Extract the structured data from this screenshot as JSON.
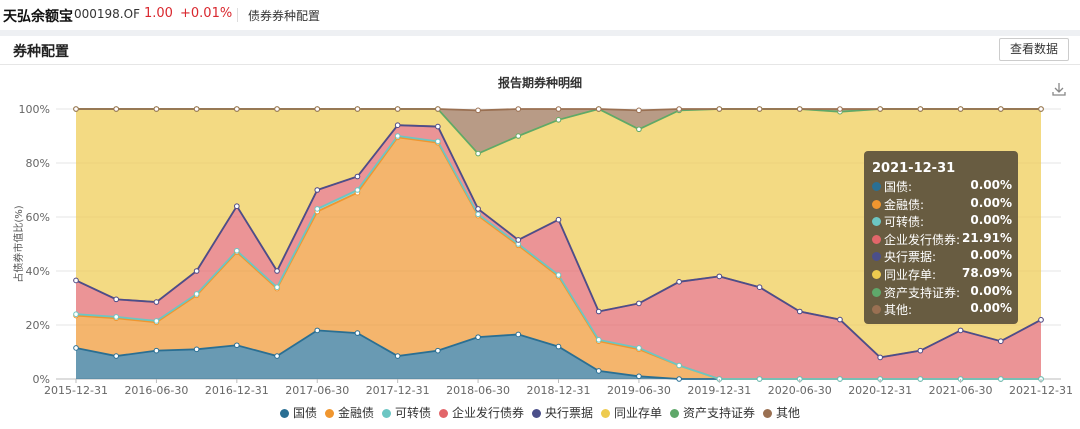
{
  "header": {
    "fund_name": "天弘余额宝",
    "fund_code": "000198.OF",
    "price": "1.00",
    "change": "+0.01%",
    "breadcrumb": "债券券种配置"
  },
  "section": {
    "title": "券种配置",
    "view_data_label": "查看数据"
  },
  "icons": {
    "download": "download-icon"
  },
  "colors": {
    "国债": "#2a6f93",
    "金融债": "#f0962f",
    "可转债": "#6cc6c3",
    "企业发行债券": "#e2666a",
    "央行票据": "#4b4f8a",
    "同业存单": "#eecb4f",
    "资产支持证券": "#5fa86a",
    "其他": "#9a7052"
  },
  "tooltip": {
    "date": "2021-12-31",
    "rows": [
      {
        "name": "国债:",
        "value": "0.00%",
        "color": "#2a6f93"
      },
      {
        "name": "金融债:",
        "value": "0.00%",
        "color": "#f0962f"
      },
      {
        "name": "可转债:",
        "value": "0.00%",
        "color": "#6cc6c3"
      },
      {
        "name": "企业发行债券:",
        "value": "21.91%",
        "color": "#e2666a"
      },
      {
        "name": "央行票据:",
        "value": "0.00%",
        "color": "#4b4f8a"
      },
      {
        "name": "同业存单:",
        "value": "78.09%",
        "color": "#eecb4f"
      },
      {
        "name": "资产支持证券:",
        "value": "0.00%",
        "color": "#5fa86a"
      },
      {
        "name": "其他:",
        "value": "0.00%",
        "color": "#9a7052"
      }
    ]
  },
  "chart_data": {
    "type": "area",
    "stacked": true,
    "title": "报告期券种明细",
    "ylabel": "占债券市值比(%)",
    "ylim": [
      0,
      100
    ],
    "yticks": [
      "0%",
      "20%",
      "40%",
      "60%",
      "80%",
      "100%"
    ],
    "x": [
      "2015-12-31",
      "2016-03-31",
      "2016-06-30",
      "2016-09-30",
      "2016-12-31",
      "2017-03-31",
      "2017-06-30",
      "2017-09-30",
      "2017-12-31",
      "2018-03-31",
      "2018-06-30",
      "2018-09-30",
      "2018-12-31",
      "2019-03-31",
      "2019-06-30",
      "2019-09-30",
      "2019-12-31",
      "2020-03-31",
      "2020-06-30",
      "2020-09-30",
      "2020-12-31",
      "2021-03-31",
      "2021-06-30",
      "2021-09-30",
      "2021-12-31"
    ],
    "xtick_labels": [
      "2015-12-31",
      "2016-06-30",
      "2016-12-31",
      "2017-06-30",
      "2017-12-31",
      "2018-06-30",
      "2018-12-31",
      "2019-06-30",
      "2019-12-31",
      "2020-06-30",
      "2020-12-31",
      "2021-06-30",
      "2021-12-31"
    ],
    "legend_position": "bottom",
    "grid": true,
    "series": [
      {
        "name": "国债",
        "color": "#2a6f93",
        "values": [
          11.5,
          8.5,
          10.5,
          11,
          12.5,
          8.5,
          18,
          17,
          8.5,
          10.5,
          15.5,
          16.5,
          12,
          3,
          1,
          0,
          0,
          0,
          0,
          0,
          0,
          0,
          0,
          0,
          0
        ]
      },
      {
        "name": "金融债",
        "color": "#f0962f",
        "values": [
          12,
          14,
          10.5,
          20,
          34.5,
          25,
          44,
          52,
          81,
          77,
          45,
          33,
          26,
          11,
          10,
          5,
          0,
          0,
          0,
          0,
          0,
          0,
          0,
          0,
          0
        ]
      },
      {
        "name": "可转债",
        "color": "#6cc6c3",
        "values": [
          0.5,
          0.5,
          0.5,
          0.5,
          0.5,
          0.5,
          1,
          1,
          0.5,
          0.5,
          0.5,
          0.5,
          0.5,
          0.5,
          0.5,
          0,
          0,
          0,
          0,
          0,
          0,
          0,
          0,
          0,
          0
        ]
      },
      {
        "name": "企业发行债券",
        "color": "#e2666a",
        "values": [
          12.5,
          6.5,
          7,
          8.5,
          16.5,
          6,
          7,
          5,
          4,
          5.5,
          2,
          1.5,
          20.5,
          10.5,
          16.5,
          31,
          38,
          34,
          25,
          22,
          8,
          10.5,
          18,
          14,
          21.91
        ]
      },
      {
        "name": "央行票据",
        "color": "#4b4f8a",
        "values": [
          0,
          0,
          0,
          0,
          0,
          0,
          0,
          0,
          0,
          0,
          0,
          0,
          0,
          0,
          0,
          0,
          0,
          0,
          0,
          0,
          0,
          0,
          0,
          0,
          0
        ]
      },
      {
        "name": "同业存单",
        "color": "#eecb4f",
        "values": [
          63.5,
          70.5,
          71.5,
          60,
          36,
          60,
          30,
          25,
          6,
          6.5,
          20.5,
          38.5,
          37,
          75,
          64.5,
          63.5,
          62,
          66,
          75,
          77,
          92,
          89.5,
          82,
          86,
          78.09
        ]
      },
      {
        "name": "资产支持证券",
        "color": "#5fa86a",
        "values": [
          0,
          0,
          0,
          0,
          0,
          0,
          0,
          0,
          0,
          0,
          0,
          0,
          0,
          0,
          0,
          0,
          0,
          0,
          0,
          0,
          0,
          0,
          0,
          0,
          0
        ]
      },
      {
        "name": "其他",
        "color": "#9a7052",
        "values": [
          0,
          0,
          0,
          0,
          0,
          0,
          0,
          0,
          0,
          0,
          16,
          10,
          4,
          0,
          7,
          0.5,
          0,
          0,
          0,
          1,
          0,
          0,
          0,
          0,
          0
        ]
      }
    ]
  },
  "legend": [
    "国债",
    "金融债",
    "可转债",
    "企业发行债券",
    "央行票据",
    "同业存单",
    "资产支持证券",
    "其他"
  ]
}
